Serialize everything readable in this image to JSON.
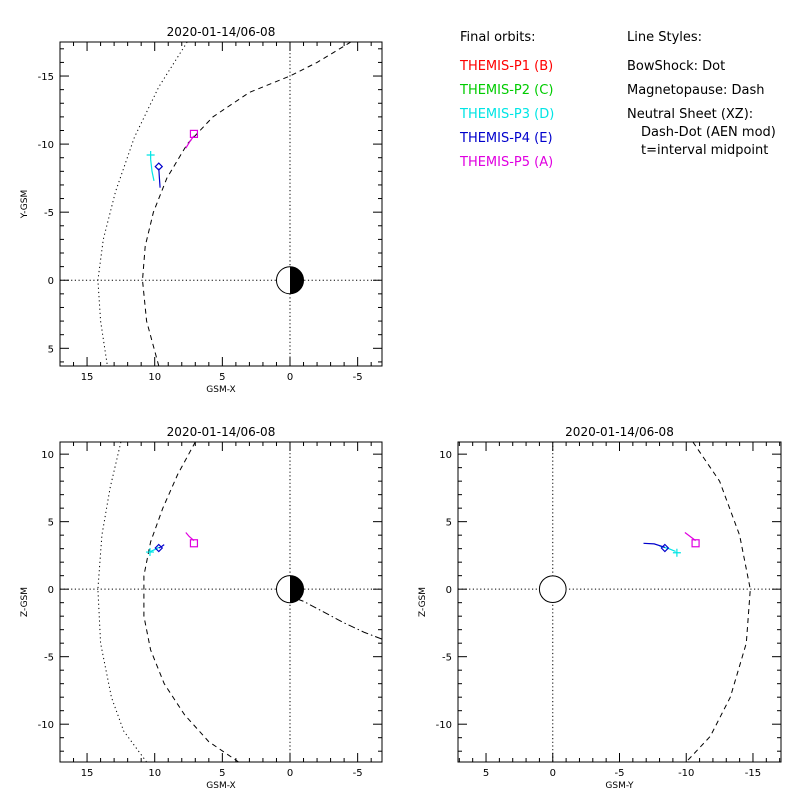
{
  "chart_data": [
    {
      "type": "line",
      "title": "2020-01-14/06-08",
      "xlabel": "GSM-X",
      "ylabel": "Y-GSM",
      "xlim": [
        17,
        -6.8
      ],
      "ylim": [
        6.3,
        -17.5
      ],
      "xticks": [
        15,
        10,
        5,
        0,
        -5
      ],
      "yticks": [
        -15,
        -10,
        -5,
        0,
        5
      ],
      "x_tick_labels": [
        "15",
        "10",
        "5",
        "0",
        "-5"
      ],
      "y_tick_labels": [
        "-15",
        "-10",
        "-5",
        "0",
        "5"
      ],
      "earth": {
        "x": 0,
        "y": 0,
        "r": 1,
        "night_side": "negative-x"
      },
      "axes_lines": "dotted lines at x=0 and y=0",
      "curves": [
        {
          "style": "dot",
          "points": [
            [
              7.6,
              -17.5
            ],
            [
              9.7,
              -14.2
            ],
            [
              11.5,
              -10.5
            ],
            [
              12.9,
              -6.5
            ],
            [
              13.8,
              -3.0
            ],
            [
              14.2,
              0
            ],
            [
              14.0,
              3.0
            ],
            [
              13.5,
              6.3
            ]
          ]
        },
        {
          "style": "dash",
          "points": [
            [
              -4.5,
              -17.5
            ],
            [
              -2.0,
              -16.0
            ],
            [
              0.0,
              -15.0
            ],
            [
              3.0,
              -13.8
            ],
            [
              5.7,
              -12.0
            ],
            [
              7.6,
              -10.0
            ],
            [
              9.1,
              -7.5
            ],
            [
              10.1,
              -5.0
            ],
            [
              10.7,
              -2.5
            ],
            [
              10.9,
              0
            ],
            [
              10.6,
              3.0
            ],
            [
              9.7,
              6.3
            ]
          ]
        }
      ],
      "series": [
        {
          "name": "THEMIS-P3 (D)",
          "color": "#00e5e5",
          "marker": "plus",
          "points": [
            [
              10.05,
              -7.3
            ],
            [
              10.2,
              -8.0
            ],
            [
              10.3,
              -8.9
            ]
          ],
          "marker_at": [
            10.3,
            -9.2
          ]
        },
        {
          "name": "THEMIS-P4 (E)",
          "color": "#0000cc",
          "marker": "diamond",
          "points": [
            [
              9.6,
              -6.8
            ],
            [
              9.65,
              -7.5
            ],
            [
              9.7,
              -8.2
            ]
          ],
          "marker_at": [
            9.7,
            -8.35
          ]
        },
        {
          "name": "THEMIS-P5 (A)",
          "color": "#e000e0",
          "marker": "square",
          "points": [
            [
              7.7,
              -9.7
            ],
            [
              7.4,
              -10.2
            ],
            [
              7.1,
              -10.6
            ]
          ],
          "marker_at": [
            7.1,
            -10.75
          ]
        }
      ]
    },
    {
      "type": "line",
      "title": "2020-01-14/06-08",
      "xlabel": "GSM-X",
      "ylabel": "Z-GSM",
      "xlim": [
        17,
        -6.8
      ],
      "ylim": [
        -12.8,
        10.9
      ],
      "xticks": [
        15,
        10,
        5,
        0,
        -5
      ],
      "yticks": [
        10,
        5,
        0,
        -5,
        -10
      ],
      "x_tick_labels": [
        "15",
        "10",
        "5",
        "0",
        "-5"
      ],
      "y_tick_labels": [
        "10",
        "5",
        "0",
        "-5",
        "-10"
      ],
      "earth": {
        "x": 0,
        "y": 0,
        "r": 1,
        "night_side": "negative-x"
      },
      "axes_lines": "dotted lines at x=0 and y=0",
      "curves": [
        {
          "style": "dot",
          "points": [
            [
              12.5,
              10.9
            ],
            [
              13.3,
              7.5
            ],
            [
              13.9,
              4.0
            ],
            [
              14.2,
              0
            ],
            [
              14.0,
              -4.0
            ],
            [
              13.2,
              -8.0
            ],
            [
              12.3,
              -10.5
            ],
            [
              10.6,
              -12.8
            ]
          ]
        },
        {
          "style": "dash",
          "points": [
            [
              7.0,
              10.9
            ],
            [
              8.3,
              8.5
            ],
            [
              9.4,
              6.0
            ],
            [
              10.3,
              3.5
            ],
            [
              10.8,
              1.0
            ],
            [
              10.8,
              -2.0
            ],
            [
              10.3,
              -4.5
            ],
            [
              9.3,
              -7.0
            ],
            [
              7.8,
              -9.3
            ],
            [
              6.0,
              -11.3
            ],
            [
              3.8,
              -12.8
            ]
          ]
        },
        {
          "style": "dashdot",
          "points": [
            [
              0.5,
              -0.35
            ],
            [
              -1.0,
              -0.9
            ],
            [
              -2.5,
              -1.7
            ],
            [
              -4.0,
              -2.5
            ],
            [
              -5.5,
              -3.2
            ],
            [
              -6.8,
              -3.7
            ]
          ]
        }
      ],
      "series": [
        {
          "name": "THEMIS-P3 (D)",
          "color": "#00e5e5",
          "marker": "plus",
          "points": [
            [
              9.7,
              3.1
            ],
            [
              9.95,
              2.95
            ],
            [
              10.3,
              2.8
            ]
          ],
          "marker_at": [
            10.35,
            2.75
          ]
        },
        {
          "name": "THEMIS-P4 (E)",
          "color": "#0000cc",
          "marker": "diamond",
          "points": [
            [
              9.3,
              3.3
            ],
            [
              9.5,
              3.15
            ],
            [
              9.7,
              3.05
            ]
          ],
          "marker_at": [
            9.7,
            3.05
          ]
        },
        {
          "name": "THEMIS-P5 (A)",
          "color": "#e000e0",
          "marker": "square",
          "points": [
            [
              7.7,
              4.2
            ],
            [
              7.45,
              3.9
            ],
            [
              7.1,
              3.6
            ]
          ],
          "marker_at": [
            7.1,
            3.4
          ]
        }
      ]
    },
    {
      "type": "line",
      "title": "2020-01-14/06-08",
      "xlabel": "GSM-Y",
      "ylabel": "Z-GSM",
      "xlim": [
        7.1,
        -17.1
      ],
      "ylim": [
        -12.8,
        10.9
      ],
      "xticks": [
        5,
        0,
        -5,
        -10,
        -15
      ],
      "yticks": [
        10,
        5,
        0,
        -5,
        -10
      ],
      "x_tick_labels": [
        "5",
        "0",
        "-5",
        "-10",
        "-15"
      ],
      "y_tick_labels": [
        "10",
        "5",
        "0",
        "-5",
        "-10"
      ],
      "earth": {
        "x": 0,
        "y": 0,
        "r": 1,
        "night_side": "none"
      },
      "axes_lines": "dotted lines at x=0 and y=0",
      "curves": [
        {
          "style": "dash",
          "points": [
            [
              -10.5,
              10.9
            ],
            [
              -12.5,
              8.0
            ],
            [
              -14.0,
              4.0
            ],
            [
              -14.8,
              0
            ],
            [
              -14.5,
              -4.0
            ],
            [
              -13.3,
              -8.0
            ],
            [
              -11.8,
              -10.9
            ],
            [
              -10.0,
              -12.8
            ]
          ]
        }
      ],
      "series": [
        {
          "name": "THEMIS-P3 (D)",
          "color": "#00e5e5",
          "marker": "plus",
          "points": [
            [
              -8.0,
              3.2
            ],
            [
              -8.7,
              3.0
            ],
            [
              -9.2,
              2.8
            ]
          ],
          "marker_at": [
            -9.3,
            2.7
          ]
        },
        {
          "name": "THEMIS-P4 (E)",
          "color": "#0000cc",
          "marker": "diamond",
          "points": [
            [
              -6.8,
              3.4
            ],
            [
              -7.6,
              3.35
            ],
            [
              -8.4,
              3.1
            ]
          ],
          "marker_at": [
            -8.4,
            3.05
          ]
        },
        {
          "name": "THEMIS-P5 (A)",
          "color": "#e000e0",
          "marker": "square",
          "points": [
            [
              -9.9,
              4.2
            ],
            [
              -10.3,
              3.9
            ],
            [
              -10.7,
              3.6
            ]
          ],
          "marker_at": [
            -10.7,
            3.4
          ]
        }
      ]
    }
  ],
  "legend": {
    "heading": "Final orbits:",
    "entries": [
      {
        "label": "THEMIS-P1 (B)",
        "color": "#ff0000"
      },
      {
        "label": "THEMIS-P2 (C)",
        "color": "#00cc00"
      },
      {
        "label": "THEMIS-P3 (D)",
        "color": "#00e5e5"
      },
      {
        "label": "THEMIS-P4 (E)",
        "color": "#0000cc"
      },
      {
        "label": "THEMIS-P5 (A)",
        "color": "#e000e0"
      }
    ]
  },
  "line_styles": {
    "heading": "Line Styles:",
    "lines": [
      "BowShock: Dot",
      "Magnetopause: Dash",
      "Neutral Sheet (XZ):",
      "Dash-Dot (AEN mod)",
      "t=interval midpoint"
    ]
  }
}
